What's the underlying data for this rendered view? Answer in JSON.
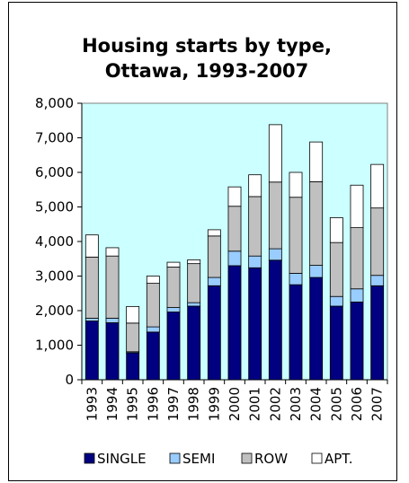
{
  "chart_data": {
    "type": "bar",
    "stacked": true,
    "title_lines": [
      "Housing starts by type,",
      "Ottawa, 1993-2007"
    ],
    "xlabel": "",
    "ylabel": "",
    "categories": [
      "1993",
      "1994",
      "1995",
      "1996",
      "1997",
      "1998",
      "1999",
      "2000",
      "2001",
      "2002",
      "2003",
      "2004",
      "2005",
      "2006",
      "2007"
    ],
    "series": [
      {
        "name": "SINGLE",
        "color": "#000080",
        "values": [
          1700,
          1650,
          780,
          1380,
          1960,
          2130,
          2720,
          3300,
          3240,
          3460,
          2750,
          2960,
          2130,
          2250,
          2720
        ]
      },
      {
        "name": "SEMI",
        "color": "#99ccff",
        "values": [
          80,
          130,
          30,
          150,
          130,
          100,
          240,
          420,
          340,
          330,
          330,
          350,
          280,
          380,
          300
        ]
      },
      {
        "name": "ROW",
        "color": "#c0c0c0",
        "values": [
          1770,
          1800,
          830,
          1260,
          1170,
          1130,
          1200,
          1300,
          1720,
          1930,
          2200,
          2420,
          1560,
          1770,
          1950
        ]
      },
      {
        "name": "APT.",
        "color": "#ffffff",
        "values": [
          640,
          240,
          480,
          210,
          140,
          110,
          180,
          560,
          630,
          1660,
          720,
          1150,
          720,
          1230,
          1260
        ]
      }
    ],
    "ylim": [
      0,
      8000
    ],
    "yticks": [
      "0",
      "1,000",
      "2,000",
      "3,000",
      "4,000",
      "5,000",
      "6,000",
      "7,000",
      "8,000"
    ],
    "plot_background": "#ccffff",
    "grid": false,
    "legend_position": "bottom"
  }
}
